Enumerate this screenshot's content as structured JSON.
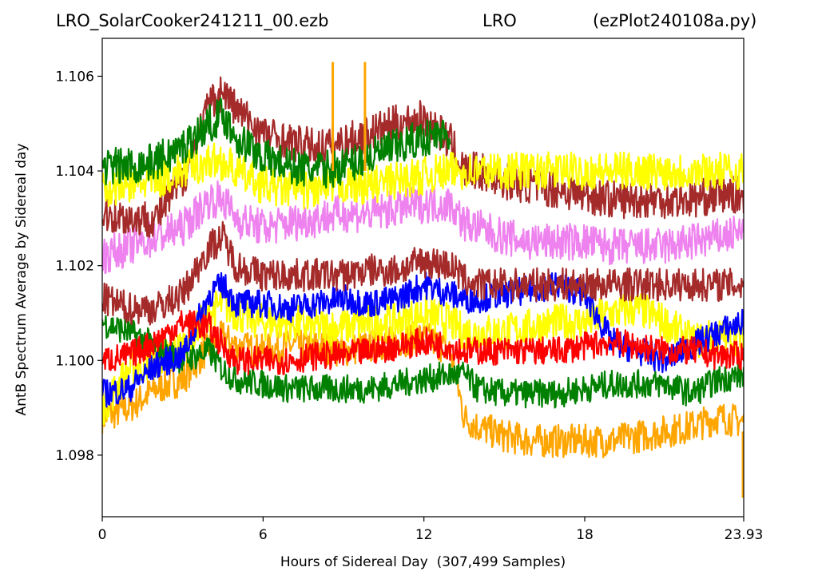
{
  "chart_data": {
    "type": "line",
    "title_left": "LRO_SolarCooker241211_00.ezb",
    "title_center": "LRO",
    "title_right": "(ezPlot240108a.py)",
    "xlabel": "Hours of Sidereal Day  (307,499 Samples)",
    "ylabel": "AntB Spectrum Average by Sidereal day",
    "xlim": [
      0,
      23.93
    ],
    "ylim": [
      1.0967,
      1.1068
    ],
    "x_ticks": [
      0,
      6,
      12,
      18,
      23.93
    ],
    "x_tick_labels": [
      "0",
      "6",
      "12",
      "18",
      "23.93"
    ],
    "y_ticks": [
      1.098,
      1.1,
      1.102,
      1.104,
      1.106
    ],
    "y_tick_labels": [
      "1.098",
      "1.100",
      "1.102",
      "1.104",
      "1.106"
    ],
    "grid": false,
    "legend": "none",
    "x": [
      0,
      1,
      2,
      3,
      4,
      4.5,
      5,
      6,
      7,
      8,
      9,
      10,
      11,
      12,
      13,
      13.5,
      14,
      15,
      16,
      17,
      18,
      19,
      20,
      21,
      22,
      23,
      23.93
    ],
    "series": [
      {
        "color": "#ffa500",
        "band": 0.0007,
        "values": [
          1.0988,
          1.099,
          1.0994,
          1.0996,
          1.1003,
          1.1005,
          1.1003,
          1.1002,
          1.1003,
          1.1003,
          1.1002,
          1.1003,
          1.1004,
          1.1005,
          1.1002,
          1.0988,
          1.0986,
          1.0984,
          1.0983,
          1.0983,
          1.0983,
          1.0983,
          1.0984,
          1.0985,
          1.0986,
          1.0988,
          1.0987
        ]
      },
      {
        "color": "#ffff00",
        "band": 0.0008,
        "values": [
          1.099,
          1.0998,
          1.1,
          1.1003,
          1.101,
          1.1012,
          1.101,
          1.1008,
          1.1008,
          1.1007,
          1.1007,
          1.1008,
          1.1008,
          1.101,
          1.1008,
          1.1006,
          1.1006,
          1.1006,
          1.1007,
          1.1008,
          1.1008,
          1.101,
          1.1011,
          1.1008,
          1.1004,
          1.1005,
          1.1005
        ]
      },
      {
        "color": "#008000",
        "band": 0.0006,
        "values": [
          1.1008,
          1.1006,
          1.1003,
          1.1,
          1.1002,
          1.0998,
          1.0996,
          1.0995,
          1.0994,
          1.0994,
          1.0994,
          1.0994,
          1.0995,
          1.0996,
          1.0997,
          1.0997,
          1.0994,
          1.0993,
          1.0993,
          1.0993,
          1.0994,
          1.0995,
          1.0995,
          1.0995,
          1.0993,
          1.0996,
          1.0997
        ]
      },
      {
        "color": "#0000ff",
        "band": 0.0006,
        "values": [
          1.0993,
          1.0994,
          1.0999,
          1.1001,
          1.1014,
          1.1016,
          1.1012,
          1.1012,
          1.1011,
          1.1012,
          1.1013,
          1.1012,
          1.1013,
          1.1016,
          1.1014,
          1.1013,
          1.1013,
          1.1014,
          1.1015,
          1.1016,
          1.1014,
          1.1004,
          1.1002,
          1.1,
          1.1003,
          1.1006,
          1.1008
        ]
      },
      {
        "color": "#ff0000",
        "band": 0.0006,
        "values": [
          1.1,
          1.1001,
          1.1004,
          1.1008,
          1.1007,
          1.1003,
          1.1,
          1.1,
          1.1,
          1.1001,
          1.1001,
          1.1002,
          1.1003,
          1.1004,
          1.1003,
          1.1002,
          1.1002,
          1.1002,
          1.1002,
          1.1002,
          1.1003,
          1.1004,
          1.1003,
          1.1002,
          1.1002,
          1.1001,
          1.1001
        ]
      },
      {
        "color": "#ee82ee",
        "band": 0.0008,
        "values": [
          1.1022,
          1.1024,
          1.1026,
          1.1028,
          1.1034,
          1.1034,
          1.103,
          1.1028,
          1.1029,
          1.103,
          1.1031,
          1.1031,
          1.1032,
          1.1033,
          1.1033,
          1.1029,
          1.1028,
          1.1026,
          1.1025,
          1.1025,
          1.1025,
          1.1024,
          1.1024,
          1.1024,
          1.1025,
          1.1026,
          1.1027
        ]
      },
      {
        "color": "#a52a2a",
        "band": 0.0007,
        "values": [
          1.1013,
          1.1011,
          1.1011,
          1.1014,
          1.1024,
          1.1026,
          1.102,
          1.1018,
          1.1018,
          1.1018,
          1.1018,
          1.1019,
          1.1019,
          1.1021,
          1.102,
          1.1017,
          1.1016,
          1.1016,
          1.1016,
          1.1016,
          1.1016,
          1.1016,
          1.1016,
          1.1016,
          1.1016,
          1.1016,
          1.1016
        ]
      },
      {
        "color": "#a52a2a",
        "band": 0.0008,
        "values": [
          1.1031,
          1.103,
          1.103,
          1.1038,
          1.1054,
          1.1057,
          1.1053,
          1.1048,
          1.1046,
          1.1045,
          1.1046,
          1.1048,
          1.105,
          1.1051,
          1.1046,
          1.104,
          1.104,
          1.1038,
          1.1037,
          1.1036,
          1.1035,
          1.1034,
          1.1034,
          1.1034,
          1.1034,
          1.1035,
          1.1035
        ]
      },
      {
        "color": "#ffff00",
        "band": 0.0008,
        "values": [
          1.1036,
          1.1037,
          1.1038,
          1.104,
          1.1042,
          1.1042,
          1.104,
          1.1037,
          1.1036,
          1.1036,
          1.1037,
          1.1037,
          1.1038,
          1.1039,
          1.104,
          1.104,
          1.104,
          1.104,
          1.104,
          1.104,
          1.104,
          1.104,
          1.104,
          1.104,
          1.104,
          1.104,
          1.104
        ]
      },
      {
        "color": "#008000",
        "band": 0.0008,
        "values": [
          1.1041,
          1.1041,
          1.1042,
          1.1045,
          1.105,
          1.1052,
          1.1047,
          1.1043,
          1.1041,
          1.104,
          1.1041,
          1.1043,
          1.1045,
          1.1047,
          1.1048,
          null,
          null,
          null,
          null,
          null,
          null,
          null,
          null,
          null,
          null,
          null,
          null
        ]
      }
    ],
    "spikes": [
      {
        "color": "#ffa500",
        "x": 8.6,
        "y_from": 1.104,
        "y_to": 1.1063
      },
      {
        "color": "#ffa500",
        "x": 9.8,
        "y_from": 1.104,
        "y_to": 1.1063
      },
      {
        "color": "#ffa500",
        "x": 23.9,
        "y_from": 1.0985,
        "y_to": 1.0971
      }
    ]
  }
}
